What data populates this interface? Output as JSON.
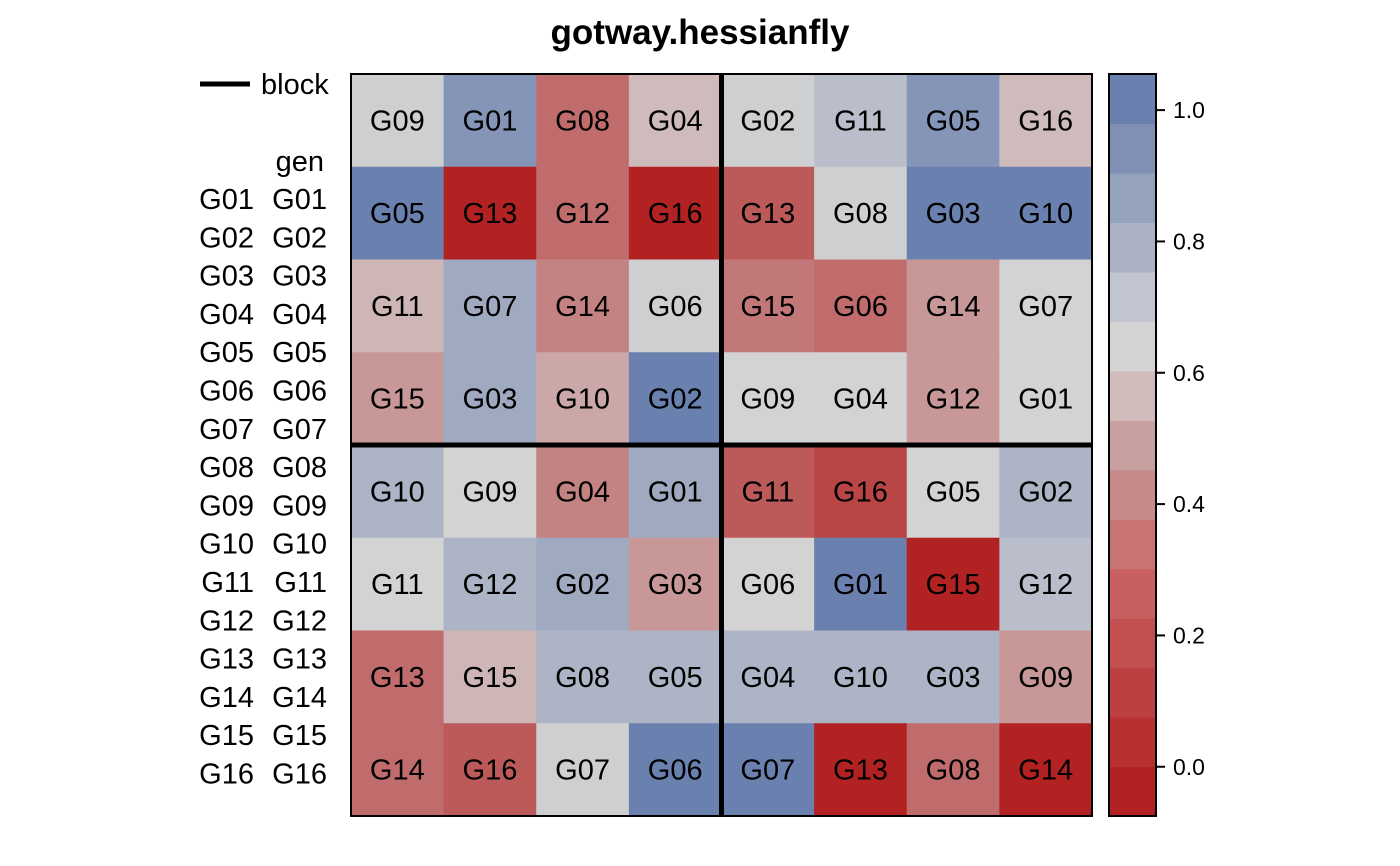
{
  "chart_data": {
    "type": "heatmap",
    "title": "gotway.hessianfly",
    "legend": {
      "line_label": "block",
      "key_title": "gen",
      "entries": [
        {
          "left": "G01",
          "right": "G01"
        },
        {
          "left": "G02",
          "right": "G02"
        },
        {
          "left": "G03",
          "right": "G03"
        },
        {
          "left": "G04",
          "right": "G04"
        },
        {
          "left": "G05",
          "right": "G05"
        },
        {
          "left": "G06",
          "right": "G06"
        },
        {
          "left": "G07",
          "right": "G07"
        },
        {
          "left": "G08",
          "right": "G08"
        },
        {
          "left": "G09",
          "right": "G09"
        },
        {
          "left": "G10",
          "right": "G10"
        },
        {
          "left": "G11",
          "right": "G11"
        },
        {
          "left": "G12",
          "right": "G12"
        },
        {
          "left": "G13",
          "right": "G13"
        },
        {
          "left": "G14",
          "right": "G14"
        },
        {
          "left": "G15",
          "right": "G15"
        },
        {
          "left": "G16",
          "right": "G16"
        }
      ]
    },
    "grid_rows": 8,
    "grid_cols": 8,
    "block_divisions": {
      "col_after": 4,
      "row_after": 4
    },
    "cells": [
      [
        {
          "label": "G09",
          "value": 0.62
        },
        {
          "label": "G01",
          "value": 0.9
        },
        {
          "label": "G08",
          "value": 0.25
        },
        {
          "label": "G04",
          "value": 0.52
        },
        {
          "label": "G02",
          "value": 0.62
        },
        {
          "label": "G11",
          "value": 0.7
        },
        {
          "label": "G05",
          "value": 0.9
        },
        {
          "label": "G16",
          "value": 0.52
        }
      ],
      [
        {
          "label": "G05",
          "value": 1.0
        },
        {
          "label": "G13",
          "value": 0.0
        },
        {
          "label": "G12",
          "value": 0.25
        },
        {
          "label": "G16",
          "value": 0.0
        },
        {
          "label": "G13",
          "value": 0.19
        },
        {
          "label": "G08",
          "value": 0.62
        },
        {
          "label": "G03",
          "value": 1.0
        },
        {
          "label": "G10",
          "value": 1.0
        }
      ],
      [
        {
          "label": "G11",
          "value": 0.5
        },
        {
          "label": "G07",
          "value": 0.8
        },
        {
          "label": "G14",
          "value": 0.33
        },
        {
          "label": "G06",
          "value": 0.62
        },
        {
          "label": "G15",
          "value": 0.29
        },
        {
          "label": "G06",
          "value": 0.25
        },
        {
          "label": "G14",
          "value": 0.4
        },
        {
          "label": "G07",
          "value": 0.6
        }
      ],
      [
        {
          "label": "G15",
          "value": 0.4
        },
        {
          "label": "G03",
          "value": 0.8
        },
        {
          "label": "G10",
          "value": 0.45
        },
        {
          "label": "G02",
          "value": 1.0
        },
        {
          "label": "G09",
          "value": 0.6
        },
        {
          "label": "G04",
          "value": 0.6
        },
        {
          "label": "G12",
          "value": 0.4
        },
        {
          "label": "G01",
          "value": 0.6
        }
      ],
      [
        {
          "label": "G10",
          "value": 0.75
        },
        {
          "label": "G09",
          "value": 0.6
        },
        {
          "label": "G04",
          "value": 0.33
        },
        {
          "label": "G01",
          "value": 0.8
        },
        {
          "label": "G11",
          "value": 0.19
        },
        {
          "label": "G16",
          "value": 0.12
        },
        {
          "label": "G05",
          "value": 0.6
        },
        {
          "label": "G02",
          "value": 0.75
        }
      ],
      [
        {
          "label": "G11",
          "value": 0.6
        },
        {
          "label": "G12",
          "value": 0.75
        },
        {
          "label": "G02",
          "value": 0.8
        },
        {
          "label": "G03",
          "value": 0.4
        },
        {
          "label": "G06",
          "value": 0.6
        },
        {
          "label": "G01",
          "value": 1.0
        },
        {
          "label": "G15",
          "value": 0.0
        },
        {
          "label": "G12",
          "value": 0.7
        }
      ],
      [
        {
          "label": "G13",
          "value": 0.25
        },
        {
          "label": "G15",
          "value": 0.5
        },
        {
          "label": "G08",
          "value": 0.75
        },
        {
          "label": "G05",
          "value": 0.75
        },
        {
          "label": "G04",
          "value": 0.75
        },
        {
          "label": "G10",
          "value": 0.75
        },
        {
          "label": "G03",
          "value": 0.75
        },
        {
          "label": "G09",
          "value": 0.4
        }
      ],
      [
        {
          "label": "G14",
          "value": 0.25
        },
        {
          "label": "G16",
          "value": 0.19
        },
        {
          "label": "G07",
          "value": 0.62
        },
        {
          "label": "G06",
          "value": 1.0
        },
        {
          "label": "G07",
          "value": 1.0
        },
        {
          "label": "G13",
          "value": 0.0
        },
        {
          "label": "G08",
          "value": 0.25
        },
        {
          "label": "G14",
          "value": 0.0
        }
      ]
    ],
    "colorbar": {
      "range": [
        -0.075,
        1.055
      ],
      "ticks": [
        {
          "value": 0.0,
          "label": "0.0"
        },
        {
          "value": 0.2,
          "label": "0.2"
        },
        {
          "value": 0.4,
          "label": "0.4"
        },
        {
          "value": 0.6,
          "label": "0.6"
        },
        {
          "value": 0.8,
          "label": "0.8"
        },
        {
          "value": 1.0,
          "label": "1.0"
        }
      ],
      "bands": [
        "#b22222",
        "#b83131",
        "#bd4040",
        "#c35050",
        "#c96060",
        "#c87474",
        "#c68a8a",
        "#c9a0a0",
        "#d1bcbc",
        "#d3d3d3",
        "#c0c5d0",
        "#aab2c3",
        "#95a2bc",
        "#7f90b4",
        "#6a80ae"
      ]
    },
    "colors": {
      "low": "#b22222",
      "mid": "#d3d3d3",
      "high": "#6a80ae"
    }
  }
}
